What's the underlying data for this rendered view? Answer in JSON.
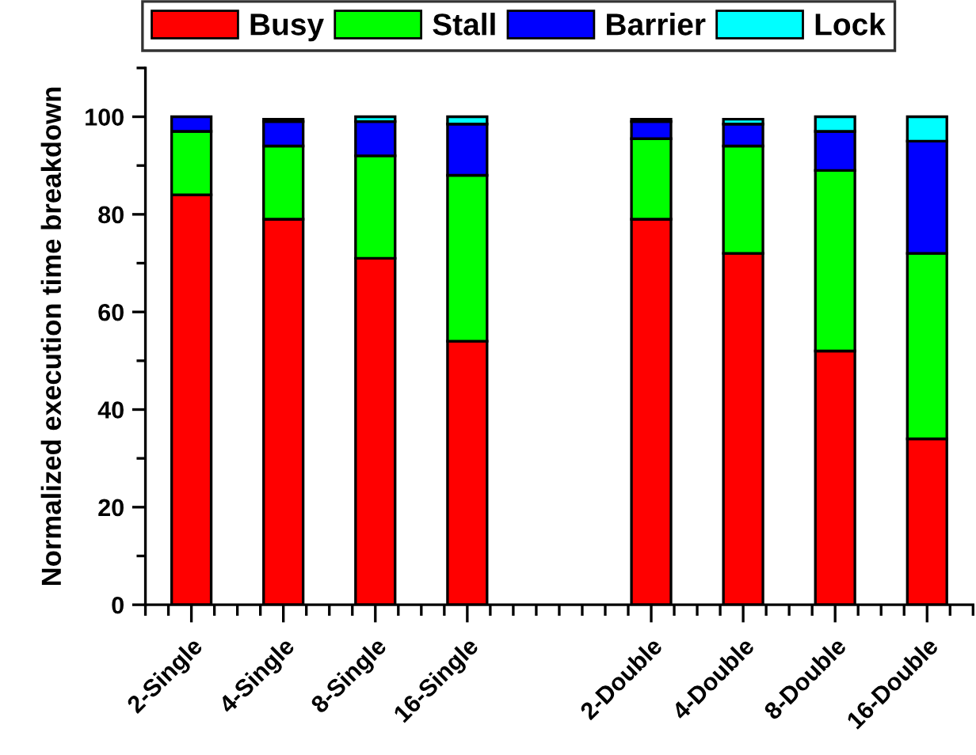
{
  "chart_data": {
    "type": "bar",
    "stacked": true,
    "ylabel": "Normalized execution time breakdown",
    "categories": [
      "2-Single",
      "4-Single",
      "8-Single",
      "16-Single",
      null,
      "2-Double",
      "4-Double",
      "8-Double",
      "16-Double"
    ],
    "series": [
      {
        "name": "Busy",
        "color": "#ff0000",
        "values": [
          84,
          79,
          71,
          54,
          null,
          79,
          72,
          52,
          34
        ]
      },
      {
        "name": "Stall",
        "color": "#00ff00",
        "values": [
          13,
          15,
          21,
          34,
          null,
          16.5,
          22,
          37,
          38
        ]
      },
      {
        "name": "Barrier",
        "color": "#0000ff",
        "values": [
          3,
          5,
          7,
          10.5,
          null,
          3.5,
          4.5,
          8,
          23
        ]
      },
      {
        "name": "Lock",
        "color": "#00ffff",
        "values": [
          null,
          0.5,
          1,
          1.5,
          null,
          0.5,
          1,
          3,
          5
        ]
      }
    ],
    "ylim": [
      0,
      110
    ],
    "yticks": [
      0,
      20,
      40,
      60,
      80,
      100
    ],
    "legend": "top",
    "grid": false
  }
}
